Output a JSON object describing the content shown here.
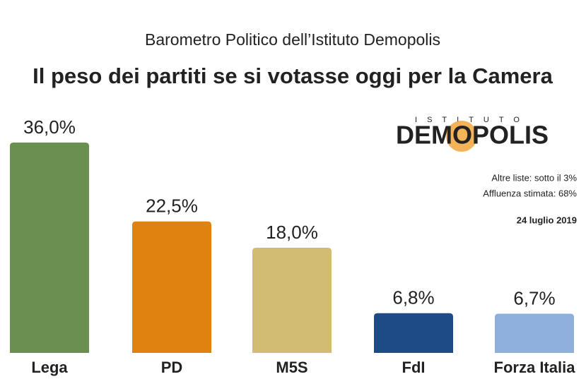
{
  "chart_data": {
    "type": "bar",
    "subtitle": "Barometro Politico dell’Istituto Demopolis",
    "title": "Il peso dei partiti se si votasse oggi per la Camera",
    "categories": [
      "Lega",
      "PD",
      "M5S",
      "FdI",
      "Forza Italia"
    ],
    "values": [
      36.0,
      22.5,
      18.0,
      6.8,
      6.7
    ],
    "value_labels": [
      "36,0%",
      "22,5%",
      "18,0%",
      "6,8%",
      "6,7%"
    ],
    "colors": [
      "#6a8f50",
      "#e0820f",
      "#d2bb72",
      "#1e4a85",
      "#8fb0dc"
    ],
    "logo": {
      "top": "ISTITUTO",
      "name": "DEMOPOLIS"
    },
    "notes": [
      "Altre liste: sotto il 3%",
      "Affluenza stimata: 68%"
    ],
    "date": "24 luglio 2019"
  }
}
